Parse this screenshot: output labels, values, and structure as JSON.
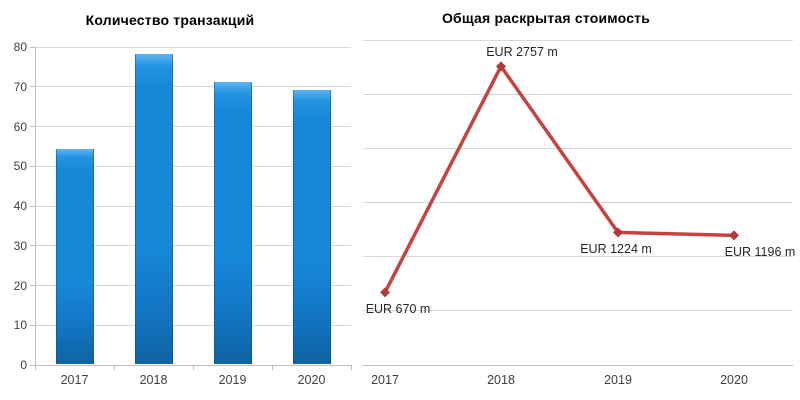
{
  "chart_data": [
    {
      "type": "bar",
      "title": "Количество транзакций",
      "categories": [
        "2017",
        "2018",
        "2019",
        "2020"
      ],
      "values": [
        54,
        78,
        71,
        69
      ],
      "xlabel": "",
      "ylabel": "",
      "ylim": [
        0,
        80
      ],
      "y_ticks": [
        0,
        10,
        20,
        30,
        40,
        50,
        60,
        70,
        80
      ],
      "grid": true,
      "legend": false,
      "bar_color": "#1787d8",
      "bar_gradient_top": "#5db4f0",
      "bar_gradient_bottom": "#0f63a2"
    },
    {
      "type": "line",
      "title": "Общая раскрытая стоимость",
      "categories": [
        "2017",
        "2018",
        "2019",
        "2020"
      ],
      "values": [
        670,
        2757,
        1224,
        1196
      ],
      "data_labels": [
        "EUR 670 m",
        "EUR 2757 m",
        "EUR 1224 m",
        "EUR 1196 m"
      ],
      "xlabel": "",
      "ylabel": "",
      "ylim": [
        0,
        3000
      ],
      "gridline_step": 500,
      "y_tick_labels_visible": false,
      "grid": true,
      "legend": false,
      "line_color": "#c7423e",
      "marker": "diamond",
      "marker_color": "#b13a37"
    }
  ],
  "colors": {
    "gridline": "#d9d9d9",
    "axis": "#bfbfbf",
    "tick_text": "#404040",
    "title_text": "#000000",
    "data_label_text": "#262626"
  }
}
